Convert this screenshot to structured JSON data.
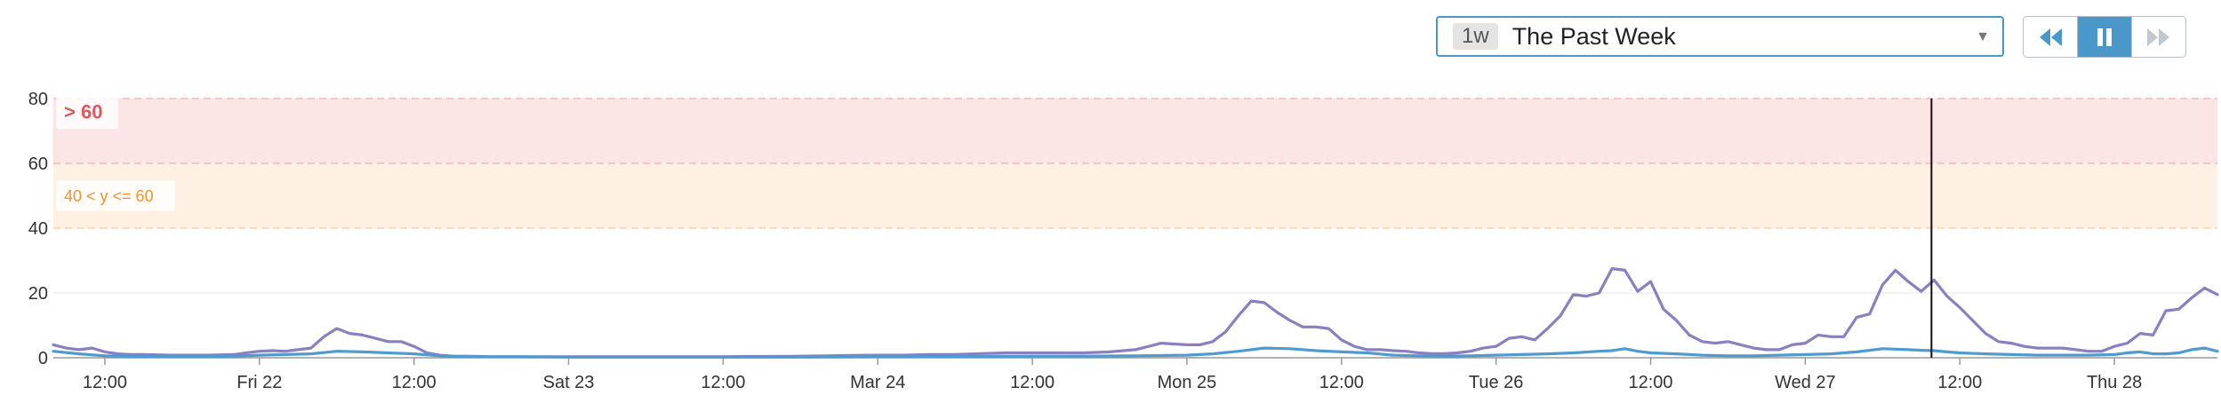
{
  "timeframe": {
    "badge": "1w",
    "label": "The Past Week"
  },
  "playback": {
    "rewind_icon": "rewind-icon",
    "pause_icon": "pause-icon",
    "forward_icon": "fast-forward-icon",
    "active_state": "paused"
  },
  "colors": {
    "accent": "#4a98c9",
    "series_purple": "#8a7fc1",
    "series_blue": "#4d9bd1",
    "band_critical": "#fbe5e5",
    "band_warning": "#fef0e3",
    "critical_text": "#e0575c",
    "warning_text": "#f0952e"
  },
  "chart_data": {
    "type": "line",
    "ylim": [
      0,
      80
    ],
    "yticks": [
      "0",
      "20",
      "40",
      "60",
      "80"
    ],
    "xlim": [
      "Thu 21 08:00",
      "Thu 28 20:00"
    ],
    "x_tick_labels": [
      "12:00",
      "Fri 22",
      "12:00",
      "Sat 23",
      "12:00",
      "Mar 24",
      "12:00",
      "Mon 25",
      "12:00",
      "Tue 26",
      "12:00",
      "Wed 27",
      "12:00",
      "Thu 28"
    ],
    "x_tick_hours": [
      12,
      24,
      36,
      48,
      60,
      72,
      84,
      96,
      108,
      120,
      132,
      144,
      156,
      168
    ],
    "grid": true,
    "thresholds": [
      {
        "label": "> 60",
        "from": 60,
        "to": 80
      },
      {
        "label": "40 < y <= 60",
        "from": 40,
        "to": 60
      }
    ],
    "cursor_hour": 153.8,
    "series": [
      {
        "x": [
          8,
          9,
          10,
          11,
          12,
          13,
          14,
          15,
          16,
          17,
          18,
          19,
          20,
          21,
          22,
          23,
          24,
          25,
          26,
          27,
          28,
          29,
          30,
          31,
          32,
          33,
          34,
          35,
          36,
          37,
          38,
          39,
          40,
          41,
          42,
          43,
          44,
          45,
          46,
          48,
          50,
          52,
          54,
          56,
          58,
          60,
          62,
          64,
          66,
          68,
          70,
          72,
          74,
          76,
          78,
          80,
          82,
          84,
          86,
          88,
          90,
          92,
          94,
          96,
          97,
          98,
          99,
          100,
          101,
          102,
          103,
          104,
          105,
          106,
          107,
          108,
          109,
          110,
          111,
          112,
          113,
          114,
          115,
          116,
          117,
          118,
          119,
          120,
          121,
          122,
          123,
          124,
          125,
          126,
          127,
          128,
          129,
          130,
          131,
          132,
          133,
          134,
          135,
          136,
          137,
          138,
          139,
          140,
          141,
          142,
          143,
          144,
          145,
          146,
          147,
          148,
          149,
          150,
          151,
          152,
          153,
          154,
          155,
          156,
          157,
          158,
          159,
          160,
          161,
          162,
          163,
          164,
          165,
          166,
          167,
          168,
          169,
          170,
          171,
          172,
          173,
          174,
          175,
          176
        ],
        "values": [
          4,
          3,
          2.5,
          3,
          1.8,
          1.2,
          1,
          1,
          0.9,
          0.8,
          0.8,
          0.8,
          0.8,
          0.9,
          1,
          1.5,
          2,
          2.2,
          2,
          2.5,
          3,
          6.5,
          9,
          7.5,
          7,
          6,
          5,
          5,
          3.5,
          1.5,
          0.8,
          0.5,
          0.5,
          0.4,
          0.3,
          0.3,
          0.3,
          0.3,
          0.3,
          0.3,
          0.3,
          0.3,
          0.3,
          0.3,
          0.3,
          0.3,
          0.4,
          0.4,
          0.5,
          0.6,
          0.7,
          0.8,
          0.8,
          1,
          1,
          1.3,
          1.5,
          1.5,
          1.5,
          1.5,
          1.8,
          2.5,
          4.5,
          4,
          4,
          5,
          8,
          13,
          17.5,
          17,
          14,
          11.5,
          9.5,
          9.5,
          9,
          5.5,
          3.5,
          2.5,
          2.5,
          2.2,
          2,
          1.5,
          1.3,
          1.3,
          1.5,
          2,
          3,
          3.5,
          6,
          6.5,
          5.5,
          9,
          13,
          19.5,
          19,
          20,
          27.5,
          27,
          20.5,
          23.5,
          15,
          11.5,
          7,
          5,
          4.5,
          5,
          4,
          3,
          2.5,
          2.5,
          4,
          4.5,
          7,
          6.5,
          6.5,
          12.5,
          13.5,
          22.5,
          27,
          23.5,
          20.5,
          24,
          19,
          15.5,
          11.5,
          7.5,
          5,
          4.5,
          3.5,
          3,
          3,
          3,
          2.5,
          2,
          2,
          3.5,
          4.5,
          7.5,
          7,
          14.5,
          15,
          18.5,
          21.5,
          19.5
        ]
      },
      {
        "x": [
          8,
          10,
          12,
          14,
          16,
          18,
          20,
          22,
          24,
          26,
          28,
          30,
          32,
          34,
          36,
          38,
          40,
          44,
          48,
          56,
          64,
          72,
          80,
          88,
          92,
          96,
          98,
          100,
          102,
          104,
          106,
          108,
          110,
          112,
          114,
          116,
          118,
          120,
          122,
          124,
          126,
          128,
          129,
          130,
          131,
          132,
          134,
          136,
          138,
          140,
          142,
          144,
          146,
          148,
          150,
          152,
          153,
          154,
          155,
          156,
          158,
          160,
          162,
          164,
          166,
          168,
          169,
          170,
          171,
          172,
          173,
          174,
          175,
          176
        ],
        "values": [
          2,
          1.2,
          0.6,
          0.4,
          0.4,
          0.4,
          0.4,
          0.5,
          0.8,
          1,
          1.2,
          2,
          1.8,
          1.5,
          1.2,
          0.6,
          0.3,
          0.3,
          0.2,
          0.2,
          0.2,
          0.3,
          0.4,
          0.5,
          0.6,
          0.8,
          1.2,
          2,
          3,
          2.8,
          2.2,
          1.8,
          1.5,
          0.8,
          0.6,
          0.5,
          0.6,
          0.8,
          1,
          1.2,
          1.5,
          2,
          2.2,
          2.8,
          2,
          1.5,
          1.2,
          0.8,
          0.6,
          0.6,
          0.8,
          1,
          1.2,
          1.8,
          2.8,
          2.5,
          2.3,
          2.2,
          1.8,
          1.5,
          1.2,
          1,
          0.8,
          0.8,
          0.8,
          1,
          1.5,
          1.8,
          1.2,
          1.2,
          1.5,
          2.5,
          3,
          2
        ]
      }
    ]
  }
}
